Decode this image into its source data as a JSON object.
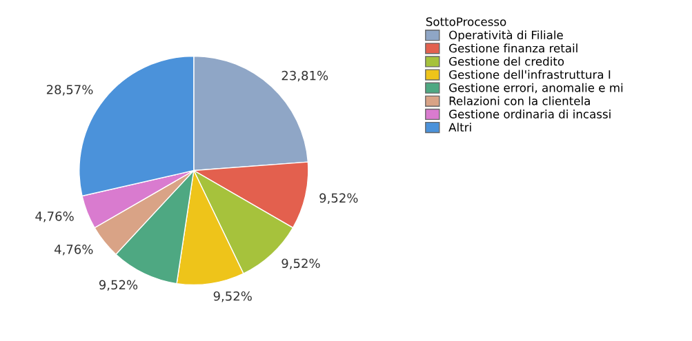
{
  "chart_data": {
    "type": "pie",
    "legend_title": "SottoProcesso",
    "legend": "top right",
    "categories": [
      "Operatività di Filiale",
      "Gestione finanza retail",
      "Gestione del credito",
      "Gestione dell'infrastruttura I",
      "Gestione errori, anomalie e mi",
      "Relazioni con la clientela",
      "Gestione ordinaria di incassi",
      "Altri"
    ],
    "values": [
      23.81,
      9.52,
      9.52,
      9.52,
      9.52,
      4.76,
      4.76,
      28.57
    ],
    "value_labels": [
      "23,81%",
      "9,52%",
      "9,52%",
      "9,52%",
      "9,52%",
      "4,76%",
      "4,76%",
      "28,57%"
    ],
    "colors": [
      "#8fa6c6",
      "#e3604e",
      "#a6c23c",
      "#eec41a",
      "#4ea882",
      "#d9a386",
      "#d97bcf",
      "#4b92da"
    ]
  }
}
